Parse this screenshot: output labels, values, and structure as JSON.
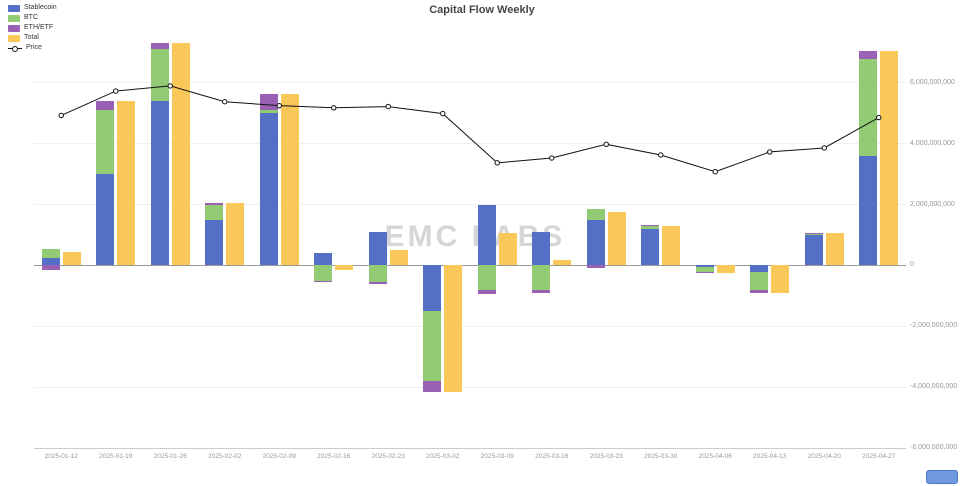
{
  "title": "Capital Flow Weekly",
  "watermark": "EMC LABS",
  "legend": [
    {
      "label": "Stablecoin",
      "color": "#5470c6",
      "type": "bar"
    },
    {
      "label": "BTC",
      "color": "#91cc75",
      "type": "bar"
    },
    {
      "label": "ETH/ETF",
      "color": "#9a60b4",
      "type": "bar"
    },
    {
      "label": "Total",
      "color": "#fac858",
      "type": "bar"
    },
    {
      "label": "Price",
      "color": "#111111",
      "type": "line"
    }
  ],
  "chart_data": {
    "type": "bar",
    "title": "Capital Flow Weekly",
    "xlabel": "",
    "ylabel": "",
    "ylim": [
      -6000000000,
      8000000000
    ],
    "yticks": [
      6000000000,
      4000000000,
      2000000000,
      0,
      -2000000000,
      -4000000000,
      -6000000000
    ],
    "grid": true,
    "legend_position": "top-left",
    "categories": [
      "2025-01-12",
      "2025-01-19",
      "2025-01-26",
      "2025-02-02",
      "2025-02-09",
      "2025-02-16",
      "2025-02-23",
      "2025-03-02",
      "2025-03-09",
      "2025-03-16",
      "2025-03-23",
      "2025-03-30",
      "2025-04-06",
      "2025-04-13",
      "2025-04-20",
      "2025-04-27"
    ],
    "series": [
      {
        "name": "Stablecoin",
        "type": "bar",
        "stack": "flow",
        "color": "#5470c6",
        "values": [
          250000000,
          3000000000,
          5400000000,
          1500000000,
          5000000000,
          400000000,
          1100000000,
          -1500000000,
          2000000000,
          1100000000,
          1500000000,
          1200000000,
          -50000000,
          -200000000,
          1000000000,
          3600000000
        ]
      },
      {
        "name": "BTC",
        "type": "bar",
        "stack": "flow",
        "color": "#91cc75",
        "values": [
          300000000,
          2100000000,
          1700000000,
          500000000,
          100000000,
          -500000000,
          -550000000,
          -2300000000,
          -800000000,
          -800000000,
          350000000,
          100000000,
          -150000000,
          -600000000,
          50000000,
          3200000000
        ]
      },
      {
        "name": "ETH/ETF",
        "type": "bar",
        "stack": "flow",
        "color": "#9a60b4",
        "values": [
          -150000000,
          300000000,
          200000000,
          50000000,
          550000000,
          -50000000,
          -50000000,
          -350000000,
          -150000000,
          -120000000,
          -100000000,
          20000000,
          -50000000,
          -120000000,
          20000000,
          250000000
        ]
      },
      {
        "name": "Total",
        "type": "bar",
        "color": "#fac858",
        "values": [
          450000000,
          5400000000,
          7300000000,
          2050000000,
          5650000000,
          -150000000,
          500000000,
          -4150000000,
          1050000000,
          180000000,
          1750000000,
          1300000000,
          -250000000,
          -900000000,
          1050000000,
          7050000000
        ]
      },
      {
        "name": "Price",
        "type": "line",
        "color": "#111111",
        "values": [
          4930000000,
          5730000000,
          5900000000,
          5380000000,
          5250000000,
          5180000000,
          5220000000,
          4990000000,
          3370000000,
          3530000000,
          3980000000,
          3630000000,
          3080000000,
          3730000000,
          3860000000,
          4860000000
        ]
      }
    ]
  }
}
